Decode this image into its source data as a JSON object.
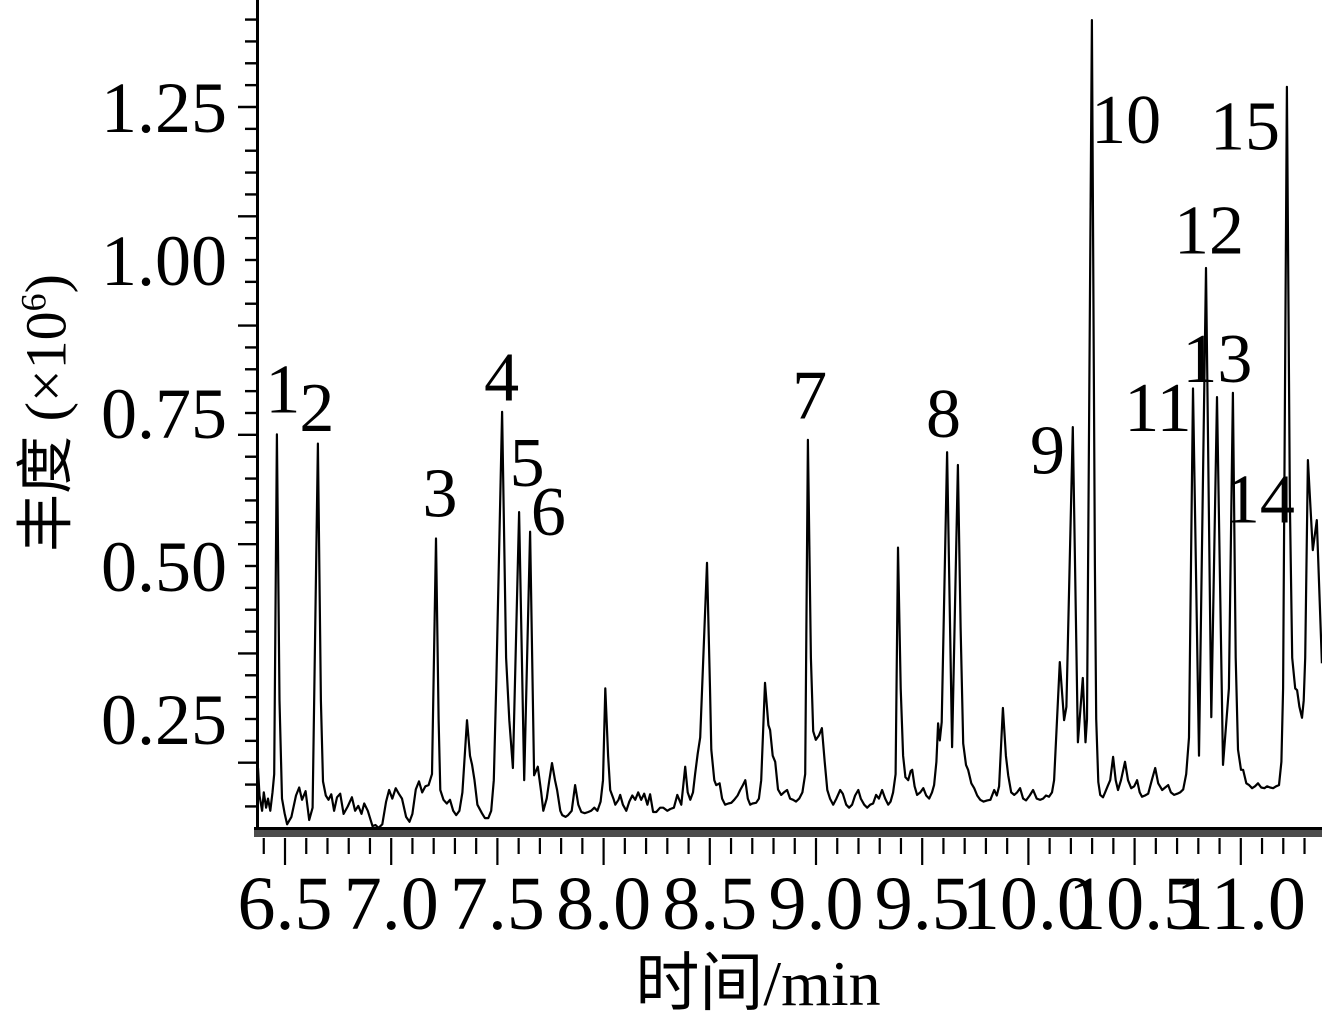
{
  "figure": {
    "background": "#ffffff",
    "trace_color": "#000000",
    "axis_color": "#000000",
    "axis_band_color": "#4d4d4d"
  },
  "chart_data": {
    "type": "line",
    "kind": "chromatogram",
    "title": "",
    "xlabel": "时间/min",
    "ylabel": "丰度 (×10⁶)",
    "ylabel_parts": {
      "prefix": "丰度 (×10",
      "sup": "6",
      "suffix": ")"
    },
    "xlim": [
      6.37,
      11.38
    ],
    "ylim_display": [
      0.065,
      1.425
    ],
    "x_major_ticks": [
      6.5,
      7.0,
      7.5,
      8.0,
      8.5,
      9.0,
      9.5,
      10.0,
      10.5,
      11.0
    ],
    "x_tick_labels": [
      "6.5",
      "7.0",
      "7.5",
      "8.0",
      "8.5",
      "9.0",
      "9.5",
      "10.0",
      "10.5",
      "11.0"
    ],
    "x_minor_step": 0.1,
    "y_major_ticks": [
      0.25,
      0.5,
      0.75,
      1.0,
      1.25
    ],
    "y_tick_labels": [
      "0.25",
      "0.50",
      "0.75",
      "1.00",
      "1.25"
    ],
    "y_minor_step": 0.0357143,
    "grid": false,
    "legend": null,
    "labeled_peaks": [
      {
        "label": "1",
        "time": 6.46,
        "abundance": 0.72,
        "label_t": 6.49,
        "label_v": 0.79
      },
      {
        "label": "2",
        "time": 6.66,
        "abundance": 0.7,
        "label_t": 6.65,
        "label_v": 0.76
      },
      {
        "label": "3",
        "time": 7.21,
        "abundance": 0.55,
        "label_t": 7.23,
        "label_v": 0.62
      },
      {
        "label": "4",
        "time": 7.52,
        "abundance": 0.75,
        "label_t": 7.52,
        "label_v": 0.81
      },
      {
        "label": "5",
        "time": 7.6,
        "abundance": 0.59,
        "label_t": 7.64,
        "label_v": 0.67
      },
      {
        "label": "6",
        "time": 7.65,
        "abundance": 0.56,
        "label_t": 7.74,
        "label_v": 0.59
      },
      {
        "label": "7",
        "time": 8.96,
        "abundance": 0.71,
        "label_t": 8.97,
        "label_v": 0.78
      },
      {
        "label": "8",
        "time": 9.62,
        "abundance": 0.69,
        "label_t": 9.6,
        "label_v": 0.75
      },
      {
        "label": "9",
        "time": 10.21,
        "abundance": 0.73,
        "label_t": 10.09,
        "label_v": 0.69
      },
      {
        "label": "10",
        "time": 10.3,
        "abundance": 1.39,
        "label_t": 10.46,
        "label_v": 1.23
      },
      {
        "label": "11",
        "time": 10.78,
        "abundance": 0.79,
        "label_t": 10.61,
        "label_v": 0.76
      },
      {
        "label": "12",
        "time": 10.84,
        "abundance": 0.99,
        "label_t": 10.85,
        "label_v": 1.05
      },
      {
        "label": "13",
        "time": 10.89,
        "abundance": 0.78,
        "label_t": 10.89,
        "label_v": 0.84
      },
      {
        "label": "14",
        "time": 10.96,
        "abundance": 0.78,
        "label_t": 11.09,
        "label_v": 0.61
      },
      {
        "label": "15",
        "time": 11.22,
        "abundance": 1.28,
        "label_t": 11.02,
        "label_v": 1.22
      }
    ],
    "trace": [
      [
        6.373,
        0.17
      ],
      [
        6.38,
        0.125
      ],
      [
        6.392,
        0.1
      ],
      [
        6.4,
        0.13
      ],
      [
        6.411,
        0.105
      ],
      [
        6.42,
        0.12
      ],
      [
        6.431,
        0.1
      ],
      [
        6.441,
        0.13
      ],
      [
        6.449,
        0.16
      ],
      [
        6.462,
        0.715
      ],
      [
        6.474,
        0.28
      ],
      [
        6.486,
        0.12
      ],
      [
        6.51,
        0.078
      ],
      [
        6.53,
        0.09
      ],
      [
        6.552,
        0.125
      ],
      [
        6.567,
        0.138
      ],
      [
        6.58,
        0.118
      ],
      [
        6.597,
        0.132
      ],
      [
        6.614,
        0.085
      ],
      [
        6.63,
        0.105
      ],
      [
        6.655,
        0.7
      ],
      [
        6.669,
        0.28
      ],
      [
        6.679,
        0.148
      ],
      [
        6.692,
        0.125
      ],
      [
        6.705,
        0.118
      ],
      [
        6.718,
        0.127
      ],
      [
        6.731,
        0.1
      ],
      [
        6.745,
        0.122
      ],
      [
        6.76,
        0.128
      ],
      [
        6.776,
        0.095
      ],
      [
        6.795,
        0.107
      ],
      [
        6.815,
        0.122
      ],
      [
        6.83,
        0.1
      ],
      [
        6.845,
        0.108
      ],
      [
        6.86,
        0.095
      ],
      [
        6.873,
        0.112
      ],
      [
        6.89,
        0.1
      ],
      [
        6.912,
        0.075
      ],
      [
        6.94,
        0.072
      ],
      [
        6.958,
        0.078
      ],
      [
        6.976,
        0.115
      ],
      [
        6.99,
        0.134
      ],
      [
        7.005,
        0.12
      ],
      [
        7.021,
        0.137
      ],
      [
        7.036,
        0.128
      ],
      [
        7.051,
        0.12
      ],
      [
        7.07,
        0.09
      ],
      [
        7.086,
        0.082
      ],
      [
        7.1,
        0.095
      ],
      [
        7.116,
        0.135
      ],
      [
        7.131,
        0.148
      ],
      [
        7.146,
        0.13
      ],
      [
        7.161,
        0.14
      ],
      [
        7.176,
        0.142
      ],
      [
        7.192,
        0.16
      ],
      [
        7.211,
        0.545
      ],
      [
        7.223,
        0.25
      ],
      [
        7.231,
        0.134
      ],
      [
        7.246,
        0.118
      ],
      [
        7.262,
        0.112
      ],
      [
        7.277,
        0.118
      ],
      [
        7.292,
        0.1
      ],
      [
        7.306,
        0.093
      ],
      [
        7.321,
        0.1
      ],
      [
        7.335,
        0.13
      ],
      [
        7.357,
        0.248
      ],
      [
        7.371,
        0.19
      ],
      [
        7.381,
        0.175
      ],
      [
        7.392,
        0.15
      ],
      [
        7.406,
        0.11
      ],
      [
        7.427,
        0.096
      ],
      [
        7.441,
        0.088
      ],
      [
        7.457,
        0.088
      ],
      [
        7.471,
        0.1
      ],
      [
        7.483,
        0.15
      ],
      [
        7.495,
        0.31
      ],
      [
        7.522,
        0.752
      ],
      [
        7.541,
        0.35
      ],
      [
        7.556,
        0.248
      ],
      [
        7.573,
        0.17
      ],
      [
        7.602,
        0.588
      ],
      [
        7.626,
        0.15
      ],
      [
        7.654,
        0.556
      ],
      [
        7.673,
        0.158
      ],
      [
        7.69,
        0.172
      ],
      [
        7.706,
        0.13
      ],
      [
        7.716,
        0.1
      ],
      [
        7.732,
        0.12
      ],
      [
        7.757,
        0.178
      ],
      [
        7.771,
        0.15
      ],
      [
        7.781,
        0.134
      ],
      [
        7.796,
        0.1
      ],
      [
        7.805,
        0.093
      ],
      [
        7.821,
        0.09
      ],
      [
        7.833,
        0.093
      ],
      [
        7.85,
        0.1
      ],
      [
        7.866,
        0.142
      ],
      [
        7.881,
        0.11
      ],
      [
        7.895,
        0.098
      ],
      [
        7.911,
        0.096
      ],
      [
        7.928,
        0.098
      ],
      [
        7.941,
        0.1
      ],
      [
        7.956,
        0.105
      ],
      [
        7.971,
        0.1
      ],
      [
        7.986,
        0.115
      ],
      [
        7.997,
        0.15
      ],
      [
        8.008,
        0.3
      ],
      [
        8.021,
        0.19
      ],
      [
        8.031,
        0.134
      ],
      [
        8.046,
        0.12
      ],
      [
        8.055,
        0.11
      ],
      [
        8.07,
        0.118
      ],
      [
        8.078,
        0.126
      ],
      [
        8.091,
        0.11
      ],
      [
        8.107,
        0.1
      ],
      [
        8.121,
        0.115
      ],
      [
        8.135,
        0.125
      ],
      [
        8.149,
        0.118
      ],
      [
        8.163,
        0.13
      ],
      [
        8.177,
        0.118
      ],
      [
        8.191,
        0.128
      ],
      [
        8.206,
        0.11
      ],
      [
        8.219,
        0.127
      ],
      [
        8.233,
        0.098
      ],
      [
        8.248,
        0.098
      ],
      [
        8.266,
        0.105
      ],
      [
        8.281,
        0.105
      ],
      [
        8.3,
        0.1
      ],
      [
        8.314,
        0.103
      ],
      [
        8.331,
        0.105
      ],
      [
        8.347,
        0.126
      ],
      [
        8.366,
        0.11
      ],
      [
        8.384,
        0.172
      ],
      [
        8.396,
        0.13
      ],
      [
        8.408,
        0.118
      ],
      [
        8.421,
        0.13
      ],
      [
        8.431,
        0.16
      ],
      [
        8.455,
        0.22
      ],
      [
        8.487,
        0.505
      ],
      [
        8.501,
        0.3
      ],
      [
        8.507,
        0.2
      ],
      [
        8.521,
        0.15
      ],
      [
        8.53,
        0.142
      ],
      [
        8.546,
        0.145
      ],
      [
        8.558,
        0.12
      ],
      [
        8.572,
        0.11
      ],
      [
        8.587,
        0.112
      ],
      [
        8.601,
        0.113
      ],
      [
        8.615,
        0.118
      ],
      [
        8.631,
        0.125
      ],
      [
        8.643,
        0.134
      ],
      [
        8.656,
        0.142
      ],
      [
        8.667,
        0.15
      ],
      [
        8.679,
        0.12
      ],
      [
        8.69,
        0.11
      ],
      [
        8.701,
        0.112
      ],
      [
        8.718,
        0.113
      ],
      [
        8.731,
        0.12
      ],
      [
        8.742,
        0.15
      ],
      [
        8.76,
        0.309
      ],
      [
        8.776,
        0.24
      ],
      [
        8.784,
        0.232
      ],
      [
        8.796,
        0.19
      ],
      [
        8.808,
        0.18
      ],
      [
        8.821,
        0.135
      ],
      [
        8.836,
        0.126
      ],
      [
        8.849,
        0.13
      ],
      [
        8.864,
        0.134
      ],
      [
        8.878,
        0.12
      ],
      [
        8.892,
        0.118
      ],
      [
        8.906,
        0.115
      ],
      [
        8.921,
        0.12
      ],
      [
        8.936,
        0.13
      ],
      [
        8.949,
        0.16
      ],
      [
        8.962,
        0.706
      ],
      [
        8.976,
        0.35
      ],
      [
        8.987,
        0.23
      ],
      [
        8.999,
        0.216
      ],
      [
        9.028,
        0.235
      ],
      [
        9.041,
        0.18
      ],
      [
        9.053,
        0.134
      ],
      [
        9.066,
        0.12
      ],
      [
        9.081,
        0.11
      ],
      [
        9.096,
        0.12
      ],
      [
        9.114,
        0.134
      ],
      [
        9.126,
        0.128
      ],
      [
        9.142,
        0.11
      ],
      [
        9.156,
        0.105
      ],
      [
        9.17,
        0.11
      ],
      [
        9.184,
        0.125
      ],
      [
        9.199,
        0.134
      ],
      [
        9.211,
        0.12
      ],
      [
        9.227,
        0.11
      ],
      [
        9.241,
        0.105
      ],
      [
        9.255,
        0.11
      ],
      [
        9.269,
        0.112
      ],
      [
        9.283,
        0.126
      ],
      [
        9.296,
        0.12
      ],
      [
        9.311,
        0.134
      ],
      [
        9.326,
        0.12
      ],
      [
        9.34,
        0.11
      ],
      [
        9.351,
        0.115
      ],
      [
        9.363,
        0.13
      ],
      [
        9.375,
        0.16
      ],
      [
        9.386,
        0.53
      ],
      [
        9.399,
        0.3
      ],
      [
        9.41,
        0.19
      ],
      [
        9.421,
        0.155
      ],
      [
        9.434,
        0.15
      ],
      [
        9.446,
        0.165
      ],
      [
        9.453,
        0.167
      ],
      [
        9.464,
        0.14
      ],
      [
        9.476,
        0.126
      ],
      [
        9.491,
        0.13
      ],
      [
        9.505,
        0.137
      ],
      [
        9.519,
        0.125
      ],
      [
        9.533,
        0.12
      ],
      [
        9.546,
        0.13
      ],
      [
        9.556,
        0.142
      ],
      [
        9.567,
        0.18
      ],
      [
        9.575,
        0.243
      ],
      [
        9.583,
        0.215
      ],
      [
        9.592,
        0.245
      ],
      [
        9.617,
        0.686
      ],
      [
        9.641,
        0.204
      ],
      [
        9.668,
        0.665
      ],
      [
        9.681,
        0.4
      ],
      [
        9.693,
        0.21
      ],
      [
        9.706,
        0.175
      ],
      [
        9.716,
        0.167
      ],
      [
        9.731,
        0.145
      ],
      [
        9.745,
        0.137
      ],
      [
        9.759,
        0.125
      ],
      [
        9.773,
        0.118
      ],
      [
        9.789,
        0.115
      ],
      [
        9.806,
        0.117
      ],
      [
        9.821,
        0.118
      ],
      [
        9.839,
        0.134
      ],
      [
        9.851,
        0.125
      ],
      [
        9.862,
        0.14
      ],
      [
        9.88,
        0.268
      ],
      [
        9.894,
        0.19
      ],
      [
        9.905,
        0.158
      ],
      [
        9.919,
        0.13
      ],
      [
        9.933,
        0.126
      ],
      [
        9.947,
        0.13
      ],
      [
        9.961,
        0.137
      ],
      [
        9.975,
        0.12
      ],
      [
        9.989,
        0.117
      ],
      [
        10.006,
        0.125
      ],
      [
        10.022,
        0.134
      ],
      [
        10.039,
        0.12
      ],
      [
        10.055,
        0.118
      ],
      [
        10.069,
        0.12
      ],
      [
        10.083,
        0.125
      ],
      [
        10.097,
        0.123
      ],
      [
        10.111,
        0.13
      ],
      [
        10.121,
        0.15
      ],
      [
        10.148,
        0.343
      ],
      [
        10.168,
        0.248
      ],
      [
        10.179,
        0.27
      ],
      [
        10.209,
        0.727
      ],
      [
        10.233,
        0.212
      ],
      [
        10.256,
        0.317
      ],
      [
        10.269,
        0.212
      ],
      [
        10.276,
        0.25
      ],
      [
        10.299,
        1.392
      ],
      [
        10.313,
        0.5
      ],
      [
        10.319,
        0.25
      ],
      [
        10.329,
        0.147
      ],
      [
        10.338,
        0.126
      ],
      [
        10.351,
        0.122
      ],
      [
        10.361,
        0.13
      ],
      [
        10.373,
        0.14
      ],
      [
        10.385,
        0.15
      ],
      [
        10.399,
        0.188
      ],
      [
        10.411,
        0.15
      ],
      [
        10.422,
        0.134
      ],
      [
        10.436,
        0.15
      ],
      [
        10.455,
        0.18
      ],
      [
        10.469,
        0.15
      ],
      [
        10.484,
        0.137
      ],
      [
        10.498,
        0.14
      ],
      [
        10.512,
        0.15
      ],
      [
        10.524,
        0.13
      ],
      [
        10.535,
        0.123
      ],
      [
        10.549,
        0.125
      ],
      [
        10.564,
        0.128
      ],
      [
        10.581,
        0.15
      ],
      [
        10.597,
        0.17
      ],
      [
        10.611,
        0.145
      ],
      [
        10.63,
        0.134
      ],
      [
        10.644,
        0.138
      ],
      [
        10.658,
        0.142
      ],
      [
        10.671,
        0.13
      ],
      [
        10.686,
        0.126
      ],
      [
        10.701,
        0.128
      ],
      [
        10.714,
        0.13
      ],
      [
        10.729,
        0.135
      ],
      [
        10.743,
        0.16
      ],
      [
        10.756,
        0.22
      ],
      [
        10.775,
        0.79
      ],
      [
        10.803,
        0.19
      ],
      [
        10.836,
        0.987
      ],
      [
        10.861,
        0.253
      ],
      [
        10.888,
        0.776
      ],
      [
        10.916,
        0.175
      ],
      [
        10.944,
        0.3
      ],
      [
        10.963,
        0.783
      ],
      [
        10.976,
        0.35
      ],
      [
        10.987,
        0.2
      ],
      [
        11.001,
        0.167
      ],
      [
        11.011,
        0.167
      ],
      [
        11.026,
        0.145
      ],
      [
        11.039,
        0.142
      ],
      [
        11.053,
        0.137
      ],
      [
        11.067,
        0.14
      ],
      [
        11.081,
        0.145
      ],
      [
        11.096,
        0.138
      ],
      [
        11.111,
        0.137
      ],
      [
        11.124,
        0.14
      ],
      [
        11.138,
        0.138
      ],
      [
        11.152,
        0.137
      ],
      [
        11.166,
        0.14
      ],
      [
        11.18,
        0.142
      ],
      [
        11.191,
        0.18
      ],
      [
        11.199,
        0.3
      ],
      [
        11.217,
        1.283
      ],
      [
        11.231,
        0.6
      ],
      [
        11.242,
        0.35
      ],
      [
        11.256,
        0.3
      ],
      [
        11.265,
        0.297
      ],
      [
        11.276,
        0.27
      ],
      [
        11.288,
        0.252
      ],
      [
        11.296,
        0.28
      ],
      [
        11.303,
        0.35
      ],
      [
        11.316,
        0.673
      ],
      [
        11.339,
        0.526
      ],
      [
        11.358,
        0.575
      ],
      [
        11.382,
        0.341
      ]
    ]
  }
}
